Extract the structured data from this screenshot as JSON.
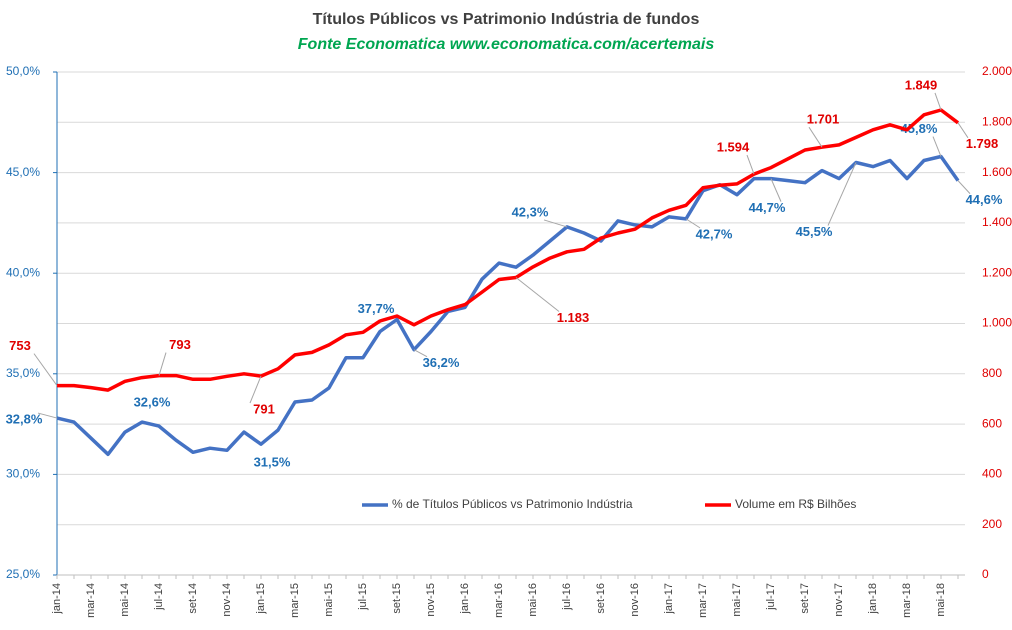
{
  "chart_data": {
    "type": "line",
    "title": "Títulos Públicos vs Patrimonio Indústria de fundos",
    "subtitle": "Fonte Economatica www.economatica.com/acertemais",
    "categories": [
      "jan-14",
      null,
      "mar-14",
      null,
      "mai-14",
      null,
      "jul-14",
      null,
      "set-14",
      null,
      "nov-14",
      null,
      "jan-15",
      null,
      "mar-15",
      null,
      "mai-15",
      null,
      "jul-15",
      null,
      "set-15",
      null,
      "nov-15",
      null,
      "jan-16",
      null,
      "mar-16",
      null,
      "mai-16",
      null,
      "jul-16",
      null,
      "set-16",
      null,
      "nov-16",
      null,
      "jan-17",
      null,
      "mar-17",
      null,
      "mai-17",
      null,
      "jul-17",
      null,
      "set-17",
      null,
      "nov-17",
      null,
      "jan-18",
      null,
      "mar-18",
      null,
      "mai-18",
      null
    ],
    "ylim": [
      25,
      50
    ],
    "yticks": [
      {
        "value": 25,
        "label": "25,0%"
      },
      {
        "value": 30,
        "label": "30,0%"
      },
      {
        "value": 35,
        "label": "35,0%"
      },
      {
        "value": 40,
        "label": "40,0%"
      },
      {
        "value": 45,
        "label": "45,0%"
      },
      {
        "value": 50,
        "label": "50,0%"
      }
    ],
    "y2lim": [
      0,
      2000
    ],
    "y2ticks": [
      0,
      200,
      400,
      600,
      800,
      {
        "value": 1000,
        "label": "1.000"
      },
      {
        "value": 1200,
        "label": "1.200"
      },
      {
        "value": 1400,
        "label": "1.400"
      },
      {
        "value": 1600,
        "label": "1.600"
      },
      {
        "value": 1800,
        "label": "1.800"
      },
      {
        "value": 2000,
        "label": "2.000"
      }
    ],
    "grid": true,
    "series": [
      {
        "name": "% de Títulos Públicos vs Patrimonio Indústria",
        "color": "#4472c4",
        "label_color": "#1f6fb4",
        "values": [
          32.8,
          32.6,
          31.8,
          31.0,
          32.1,
          32.6,
          32.4,
          31.7,
          31.1,
          31.3,
          31.2,
          32.1,
          31.5,
          32.2,
          33.6,
          33.7,
          34.3,
          35.8,
          35.8,
          37.1,
          37.7,
          36.2,
          37.1,
          38.1,
          38.3,
          39.7,
          40.5,
          40.3,
          40.9,
          41.6,
          42.3,
          42.0,
          41.6,
          42.6,
          42.4,
          42.3,
          42.8,
          42.7,
          44.1,
          44.4,
          43.9,
          44.7,
          44.7,
          44.6,
          44.5,
          45.1,
          44.7,
          45.5,
          45.3,
          45.6,
          44.7,
          45.6,
          45.8,
          44.6
        ],
        "value_labels": [
          "32,8%",
          null,
          null,
          null,
          null,
          "32,6%",
          null,
          null,
          null,
          null,
          null,
          null,
          "31,5%",
          null,
          null,
          null,
          null,
          null,
          null,
          null,
          "37,7%",
          "36,2%",
          null,
          null,
          null,
          null,
          null,
          null,
          null,
          null,
          "42,3%",
          null,
          null,
          null,
          null,
          null,
          null,
          "42,7%",
          null,
          null,
          null,
          null,
          "44,7%",
          null,
          null,
          null,
          null,
          "45,5%",
          null,
          null,
          null,
          null,
          "45,8%",
          "44,6%"
        ]
      },
      {
        "name": "Volume em R$ Bilhões",
        "color": "#ff0000",
        "label_color": "#e00000",
        "axis": "y2",
        "values": [
          753,
          753,
          745,
          735,
          770,
          785,
          793,
          793,
          778,
          778,
          790,
          800,
          791,
          820,
          875,
          885,
          915,
          955,
          965,
          1010,
          1030,
          995,
          1030,
          1055,
          1075,
          1125,
          1175,
          1183,
          1225,
          1260,
          1285,
          1295,
          1340,
          1360,
          1375,
          1420,
          1450,
          1470,
          1540,
          1550,
          1555,
          1594,
          1620,
          1655,
          1690,
          1701,
          1710,
          1740,
          1770,
          1790,
          1770,
          1830,
          1849,
          1798
        ],
        "value_labels": [
          "753",
          null,
          null,
          null,
          null,
          null,
          "793",
          null,
          null,
          null,
          null,
          null,
          "791",
          null,
          null,
          null,
          null,
          null,
          null,
          null,
          null,
          null,
          null,
          null,
          null,
          null,
          null,
          "1.183",
          null,
          null,
          null,
          null,
          null,
          null,
          null,
          null,
          null,
          null,
          null,
          null,
          null,
          "1.594",
          null,
          null,
          null,
          "1.701",
          null,
          null,
          null,
          null,
          null,
          null,
          "1.849",
          "1.798"
        ]
      }
    ]
  }
}
